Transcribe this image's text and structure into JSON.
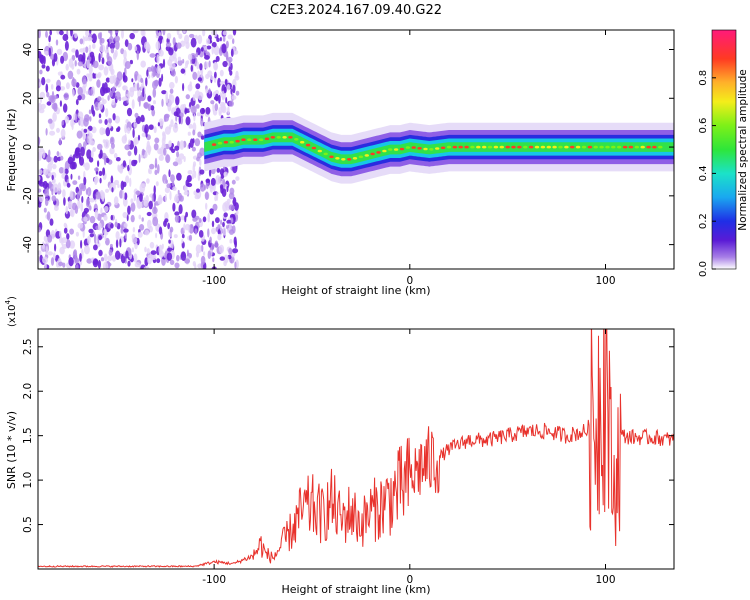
{
  "title": "C2E3.2024.167.09.40.G22",
  "colors": {
    "snr_line": "#e8322c",
    "axis": "#000000",
    "scatter": "#7f3bd8"
  },
  "chart_data": [
    {
      "type": "heatmap",
      "xlabel": "Height of straight line (km)",
      "ylabel": "Frequency (Hz)",
      "xlim": [
        -190,
        135
      ],
      "ylim": [
        -50,
        48
      ],
      "xticks": [
        -100,
        0,
        100
      ],
      "xtick_labels": [
        "-100",
        "0",
        "100"
      ],
      "yticks": [
        40,
        20,
        0,
        -20,
        -40
      ],
      "ytick_labels": [
        "40",
        "20",
        "0",
        "-20",
        "-40"
      ],
      "colorbar": {
        "label": "Normalized spectral amplitude",
        "range": [
          0,
          1
        ],
        "ticks": [
          0.0,
          0.2,
          0.4,
          0.6,
          0.8
        ],
        "tick_labels": [
          "0.0",
          "0.2",
          "0.4",
          "0.6",
          "0.8"
        ]
      },
      "ridge": {
        "description_free_profile": true,
        "x": [
          -105,
          -100,
          -95,
          -90,
          -85,
          -80,
          -75,
          -70,
          -65,
          -60,
          -55,
          -50,
          -45,
          -40,
          -35,
          -30,
          -25,
          -20,
          -15,
          -10,
          -5,
          0,
          10,
          20,
          30,
          40,
          50,
          60,
          70,
          80,
          90,
          100,
          110,
          120,
          135
        ],
        "y": [
          0,
          1,
          2,
          2,
          3,
          3,
          3,
          4,
          4,
          4,
          2,
          0,
          -2,
          -4,
          -5,
          -5,
          -4,
          -3,
          -2,
          -1,
          -1,
          0,
          -1,
          0,
          0,
          0,
          0,
          0,
          0,
          0,
          0,
          0,
          0,
          0,
          0
        ]
      },
      "noise_region_x": [
        -190,
        -88
      ]
    },
    {
      "type": "line",
      "xlabel": "Height of straight line (km)",
      "ylabel": "SNR (10 * v/v)",
      "ylabel_scale": "(x10",
      "ylabel_exponent": "4",
      "ylabel_scale_close": ")",
      "xlim": [
        -190,
        135
      ],
      "ylim": [
        0,
        27000
      ],
      "xticks": [
        -100,
        0,
        100
      ],
      "xtick_labels": [
        "-100",
        "0",
        "100"
      ],
      "yticks": [
        5000,
        10000,
        15000,
        20000,
        25000
      ],
      "ytick_labels": [
        "0.5",
        "1.0",
        "1.5",
        "2.0",
        "2.5"
      ],
      "series": [
        {
          "x": [
            -190,
            -150,
            -110,
            -100,
            -90,
            -80,
            -76,
            -74,
            -70,
            -60,
            -55,
            -50,
            -45,
            -40,
            -35,
            -30,
            -25,
            -20,
            -15,
            -10,
            -5,
            0,
            2,
            5,
            10,
            15,
            20,
            25,
            30,
            40,
            50,
            60,
            70,
            80,
            90,
            95,
            98,
            100,
            102,
            104,
            108,
            115,
            125,
            135
          ],
          "y": [
            300,
            300,
            300,
            800,
            600,
            1500,
            2800,
            1800,
            1200,
            4500,
            6500,
            7000,
            6000,
            7500,
            5500,
            6500,
            5000,
            6500,
            7000,
            8000,
            9000,
            10000,
            10500,
            11500,
            12000,
            12500,
            13500,
            14000,
            14500,
            14500,
            15000,
            15500,
            15500,
            15000,
            15500,
            17000,
            21000,
            26000,
            15000,
            8000,
            15000,
            14800,
            14800,
            14500
          ]
        }
      ]
    }
  ]
}
